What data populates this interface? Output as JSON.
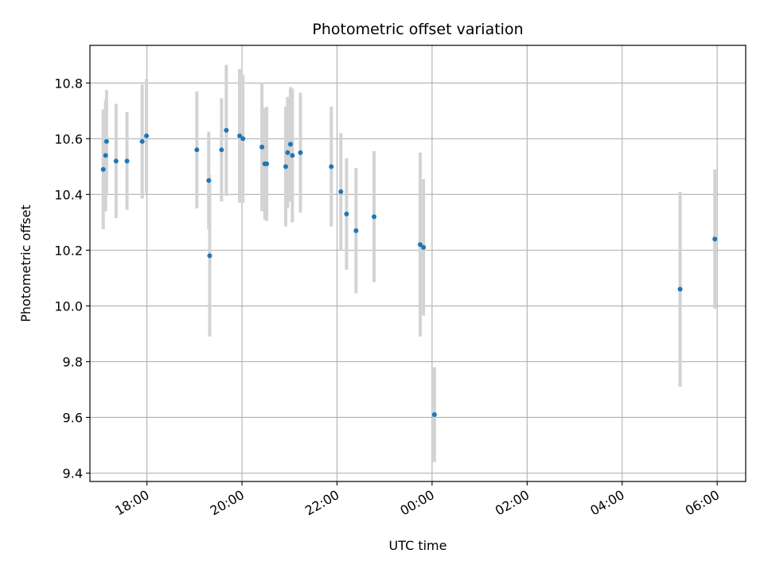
{
  "chart_data": {
    "type": "scatter",
    "title": "Photometric offset variation",
    "xlabel": "UTC time",
    "ylabel": "Photometric offset",
    "x_unit": "UTC hour of day (values beyond 24 fall on the following day)",
    "xlim": [
      16.8,
      30.6
    ],
    "ylim": [
      9.37,
      10.935
    ],
    "grid": true,
    "x_ticks": [
      {
        "value": 18,
        "label": "18:00"
      },
      {
        "value": 20,
        "label": "20:00"
      },
      {
        "value": 22,
        "label": "22:00"
      },
      {
        "value": 24,
        "label": "00:00"
      },
      {
        "value": 26,
        "label": "02:00"
      },
      {
        "value": 28,
        "label": "04:00"
      },
      {
        "value": 30,
        "label": "06:00"
      }
    ],
    "y_ticks": [
      {
        "value": 9.4,
        "label": "9.4"
      },
      {
        "value": 9.6,
        "label": "9.6"
      },
      {
        "value": 9.8,
        "label": "9.8"
      },
      {
        "value": 10.0,
        "label": "10.0"
      },
      {
        "value": 10.2,
        "label": "10.2"
      },
      {
        "value": 10.4,
        "label": "10.4"
      },
      {
        "value": 10.6,
        "label": "10.6"
      },
      {
        "value": 10.8,
        "label": "10.8"
      }
    ],
    "colors": {
      "point": "#1f77b4",
      "errorbar": "#d3d3d3",
      "grid": "#b0b0b0"
    },
    "points": [
      {
        "x": 17.08,
        "y": 10.49,
        "err": 0.215
      },
      {
        "x": 17.13,
        "y": 10.54,
        "err": 0.2
      },
      {
        "x": 17.15,
        "y": 10.59,
        "err": 0.185
      },
      {
        "x": 17.35,
        "y": 10.52,
        "err": 0.205
      },
      {
        "x": 17.58,
        "y": 10.52,
        "err": 0.175
      },
      {
        "x": 17.9,
        "y": 10.59,
        "err": 0.205
      },
      {
        "x": 17.99,
        "y": 10.61,
        "err": 0.205
      },
      {
        "x": 19.05,
        "y": 10.56,
        "err": 0.21
      },
      {
        "x": 19.3,
        "y": 10.45,
        "err": 0.175
      },
      {
        "x": 19.32,
        "y": 10.18,
        "err": 0.29
      },
      {
        "x": 19.57,
        "y": 10.56,
        "err": 0.185
      },
      {
        "x": 19.67,
        "y": 10.63,
        "err": 0.235
      },
      {
        "x": 19.95,
        "y": 10.61,
        "err": 0.24
      },
      {
        "x": 20.02,
        "y": 10.6,
        "err": 0.23
      },
      {
        "x": 20.42,
        "y": 10.57,
        "err": 0.23
      },
      {
        "x": 20.48,
        "y": 10.51,
        "err": 0.2
      },
      {
        "x": 20.52,
        "y": 10.51,
        "err": 0.205
      },
      {
        "x": 20.92,
        "y": 10.5,
        "err": 0.215
      },
      {
        "x": 20.96,
        "y": 10.55,
        "err": 0.2
      },
      {
        "x": 21.02,
        "y": 10.58,
        "err": 0.205
      },
      {
        "x": 21.06,
        "y": 10.54,
        "err": 0.24
      },
      {
        "x": 21.23,
        "y": 10.55,
        "err": 0.215
      },
      {
        "x": 21.88,
        "y": 10.5,
        "err": 0.215
      },
      {
        "x": 22.08,
        "y": 10.41,
        "err": 0.21
      },
      {
        "x": 22.2,
        "y": 10.33,
        "err": 0.2
      },
      {
        "x": 22.4,
        "y": 10.27,
        "err": 0.225
      },
      {
        "x": 22.78,
        "y": 10.32,
        "err": 0.235
      },
      {
        "x": 23.75,
        "y": 10.22,
        "err": 0.33
      },
      {
        "x": 23.82,
        "y": 10.21,
        "err": 0.245
      },
      {
        "x": 24.05,
        "y": 9.61,
        "err": 0.17
      },
      {
        "x": 29.22,
        "y": 10.06,
        "err": 0.35
      },
      {
        "x": 29.95,
        "y": 10.24,
        "err": 0.25
      }
    ]
  }
}
